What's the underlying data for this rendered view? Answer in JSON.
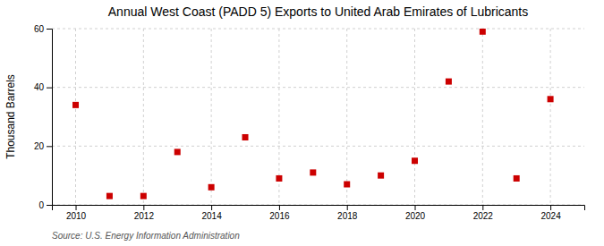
{
  "chart_data": {
    "type": "scatter",
    "title": "Annual West Coast (PADD 5) Exports to United Arab Emirates of Lubricants",
    "ylabel": "Thousand Barrels",
    "annotations": [
      "Source: U.S. Energy Information Administration"
    ],
    "x": [
      2010,
      2011,
      2012,
      2013,
      2014,
      2015,
      2016,
      2017,
      2018,
      2019,
      2020,
      2021,
      2022,
      2023,
      2024
    ],
    "values": [
      34,
      3,
      3,
      18,
      6,
      23,
      9,
      11,
      7,
      10,
      15,
      42,
      59,
      9,
      36
    ],
    "color": "#cc0000",
    "marker": "square",
    "xlim": [
      2009.3,
      2025.0
    ],
    "xticks": [
      2010,
      2012,
      2014,
      2016,
      2018,
      2020,
      2022,
      2024
    ],
    "ylim": [
      0,
      60
    ],
    "yticks": [
      0,
      20,
      40,
      60
    ],
    "grid": true
  }
}
